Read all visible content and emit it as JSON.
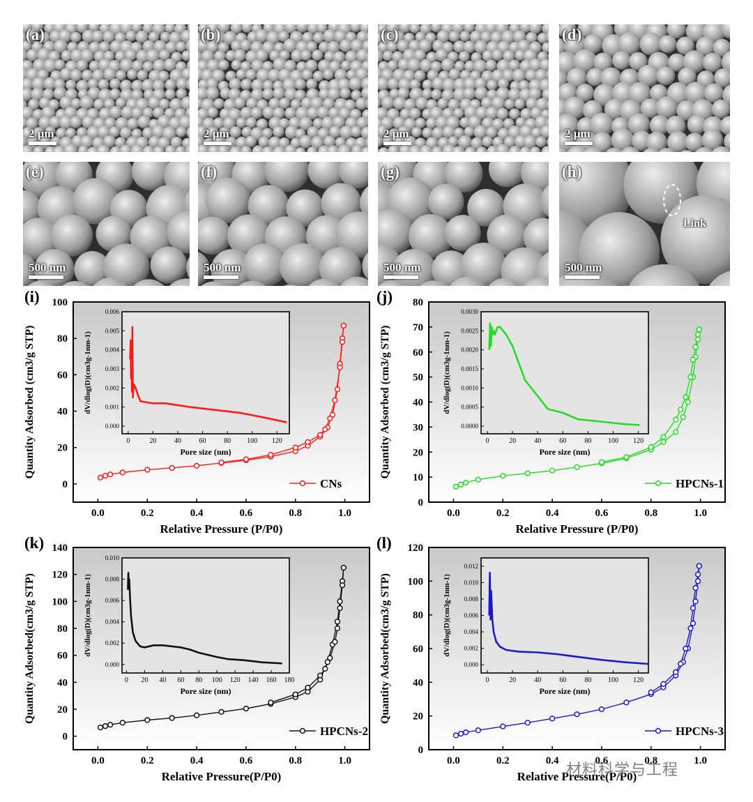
{
  "sem_panels": [
    {
      "label": "(a)",
      "scale": "2 μm"
    },
    {
      "label": "(b)",
      "scale": "2 μm"
    },
    {
      "label": "(c)",
      "scale": "2 μm"
    },
    {
      "label": "(d)",
      "scale": "2 μm"
    },
    {
      "label": "(e)",
      "scale": "500 nm"
    },
    {
      "label": "(f)",
      "scale": "500 nm"
    },
    {
      "label": "(g)",
      "scale": "500 nm"
    },
    {
      "label": "(h)",
      "scale": "500 nm",
      "annotation": "Link"
    }
  ],
  "watermark": "材料科学与工程",
  "colors": {
    "CNs": "#ff1a1a",
    "HPCNs-1": "#22dd22",
    "HPCNs-2": "#111111",
    "HPCNs-3": "#1a1acc"
  },
  "chart_data": [
    {
      "panel": "(i)",
      "type": "line",
      "series_name": "CNs",
      "xlabel": "Relative Pressure (P/P0)",
      "ylabel": "Quantity Adsorbed (cm3/g STP)",
      "xlim": [
        -0.1,
        1.1
      ],
      "ylim": [
        -10,
        100
      ],
      "xticks": [
        0.0,
        0.2,
        0.4,
        0.6,
        0.8,
        1.0
      ],
      "yticks": [
        0,
        20,
        40,
        60,
        80,
        100
      ],
      "legend_position": "bottom-right",
      "adsorption": [
        [
          0.01,
          3.5
        ],
        [
          0.03,
          4.5
        ],
        [
          0.05,
          5.2
        ],
        [
          0.1,
          6.3
        ],
        [
          0.2,
          7.8
        ],
        [
          0.3,
          8.8
        ],
        [
          0.4,
          10
        ],
        [
          0.5,
          11.5
        ],
        [
          0.6,
          13
        ],
        [
          0.7,
          15
        ],
        [
          0.8,
          18
        ],
        [
          0.85,
          21
        ],
        [
          0.9,
          26
        ],
        [
          0.93,
          31
        ],
        [
          0.95,
          38
        ],
        [
          0.97,
          52
        ],
        [
          0.98,
          66
        ],
        [
          0.99,
          80
        ],
        [
          0.995,
          87
        ]
      ],
      "desorption": [
        [
          0.995,
          87
        ],
        [
          0.99,
          78
        ],
        [
          0.98,
          64
        ],
        [
          0.96,
          46
        ],
        [
          0.94,
          36
        ],
        [
          0.92,
          30
        ],
        [
          0.9,
          27
        ],
        [
          0.85,
          23
        ],
        [
          0.8,
          20
        ],
        [
          0.7,
          16
        ],
        [
          0.6,
          13.5
        ],
        [
          0.5,
          11.8
        ]
      ],
      "inset": {
        "xlabel": "Pore size (nm)",
        "ylabel": "dV/dlog(D)(cm3g-1nm-1)",
        "xlim": [
          -5,
          130
        ],
        "ylim": [
          -0.0004,
          0.006
        ],
        "xticks": [
          0,
          20,
          40,
          60,
          80,
          100,
          120
        ],
        "yticks": [
          0.0,
          0.001,
          0.002,
          0.003,
          0.004,
          0.005,
          0.006
        ],
        "ytick_labels": [
          "0.000",
          "0.001",
          "0.002",
          "0.003",
          "0.004",
          "0.005",
          "0.006"
        ],
        "points": [
          [
            1.5,
            0.0035
          ],
          [
            2,
            0.0045
          ],
          [
            2.3,
            0.0025
          ],
          [
            2.6,
            0.0045
          ],
          [
            3,
            0.0018
          ],
          [
            3.4,
            0.0052
          ],
          [
            3.8,
            0.0015
          ],
          [
            4.5,
            0.0022
          ],
          [
            6,
            0.002
          ],
          [
            8,
            0.0016
          ],
          [
            10,
            0.0013
          ],
          [
            20,
            0.0012
          ],
          [
            30,
            0.0012
          ],
          [
            50,
            0.001
          ],
          [
            70,
            0.00085
          ],
          [
            90,
            0.0007
          ],
          [
            110,
            0.00045
          ],
          [
            128,
            0.0002
          ]
        ]
      }
    },
    {
      "panel": "(j)",
      "type": "line",
      "series_name": "HPCNs-1",
      "xlabel": "Relative Pressure (P/P0)",
      "ylabel": "Quantity Adsorbed (cm3/g STP)",
      "xlim": [
        -0.1,
        1.1
      ],
      "ylim": [
        0,
        80
      ],
      "xticks": [
        0.0,
        0.2,
        0.4,
        0.6,
        0.8,
        1.0
      ],
      "yticks": [
        0,
        10,
        20,
        30,
        40,
        50,
        60,
        70,
        80
      ],
      "legend_position": "bottom-right",
      "adsorption": [
        [
          0.01,
          6.2
        ],
        [
          0.03,
          7
        ],
        [
          0.05,
          7.8
        ],
        [
          0.1,
          9
        ],
        [
          0.2,
          10.5
        ],
        [
          0.3,
          11.5
        ],
        [
          0.4,
          12.6
        ],
        [
          0.5,
          14
        ],
        [
          0.6,
          15.5
        ],
        [
          0.7,
          17.5
        ],
        [
          0.8,
          21
        ],
        [
          0.85,
          24
        ],
        [
          0.9,
          28
        ],
        [
          0.93,
          34
        ],
        [
          0.95,
          40
        ],
        [
          0.97,
          50
        ],
        [
          0.98,
          58
        ],
        [
          0.99,
          65
        ],
        [
          0.995,
          69
        ]
      ],
      "desorption": [
        [
          0.995,
          69
        ],
        [
          0.99,
          67
        ],
        [
          0.98,
          62
        ],
        [
          0.97,
          57
        ],
        [
          0.96,
          50
        ],
        [
          0.94,
          42
        ],
        [
          0.92,
          37
        ],
        [
          0.9,
          33
        ],
        [
          0.85,
          26
        ],
        [
          0.8,
          22
        ],
        [
          0.7,
          18
        ],
        [
          0.6,
          16
        ]
      ],
      "inset": {
        "xlabel": "Pore size (nm)",
        "ylabel": "dV/dlog(D)(cm3g-1nm-1)",
        "xlim": [
          -5,
          128
        ],
        "ylim": [
          -0.0002,
          0.003
        ],
        "xticks": [
          0,
          20,
          40,
          60,
          80,
          100,
          120
        ],
        "yticks": [
          0.0,
          0.0005,
          0.001,
          0.0015,
          0.002,
          0.0025,
          0.003
        ],
        "ytick_labels": [
          "0.0000",
          "0.0005",
          "0.0010",
          "0.0015",
          "0.0020",
          "0.0025",
          "0.0030"
        ],
        "points": [
          [
            1.5,
            0.002
          ],
          [
            2.2,
            0.0027
          ],
          [
            2.8,
            0.0021
          ],
          [
            3.5,
            0.0026
          ],
          [
            4,
            0.0024
          ],
          [
            5,
            0.0025
          ],
          [
            6,
            0.0024
          ],
          [
            8,
            0.0026
          ],
          [
            10,
            0.0026
          ],
          [
            15,
            0.0024
          ],
          [
            20,
            0.0021
          ],
          [
            30,
            0.0012
          ],
          [
            35,
            0.001
          ],
          [
            48,
            0.00045
          ],
          [
            60,
            0.00035
          ],
          [
            72,
            0.00018
          ],
          [
            90,
            0.00012
          ],
          [
            110,
            5e-05
          ],
          [
            121,
            3e-05
          ]
        ]
      }
    },
    {
      "panel": "(k)",
      "type": "line",
      "series_name": "HPCNs-2",
      "xlabel": "Relative Pressure(P/P0)",
      "ylabel": "Quantity Adsorbed(cm3/g STP)",
      "xlim": [
        -0.1,
        1.1
      ],
      "ylim": [
        -10,
        140
      ],
      "xticks": [
        0.0,
        0.2,
        0.4,
        0.6,
        0.8,
        1.0
      ],
      "yticks": [
        0,
        20,
        40,
        60,
        80,
        100,
        120,
        140
      ],
      "legend_position": "bottom-right",
      "adsorption": [
        [
          0.01,
          6.5
        ],
        [
          0.03,
          7.5
        ],
        [
          0.05,
          8.5
        ],
        [
          0.1,
          10
        ],
        [
          0.2,
          12
        ],
        [
          0.3,
          13.5
        ],
        [
          0.4,
          15.5
        ],
        [
          0.5,
          18
        ],
        [
          0.6,
          20.5
        ],
        [
          0.7,
          24
        ],
        [
          0.8,
          29
        ],
        [
          0.85,
          33
        ],
        [
          0.9,
          42
        ],
        [
          0.93,
          55
        ],
        [
          0.95,
          68
        ],
        [
          0.97,
          85
        ],
        [
          0.98,
          100
        ],
        [
          0.99,
          115
        ],
        [
          0.995,
          125
        ]
      ],
      "desorption": [
        [
          0.995,
          125
        ],
        [
          0.99,
          112
        ],
        [
          0.98,
          95
        ],
        [
          0.97,
          80
        ],
        [
          0.96,
          70
        ],
        [
          0.94,
          58
        ],
        [
          0.92,
          50
        ],
        [
          0.9,
          45
        ],
        [
          0.85,
          36
        ],
        [
          0.8,
          31
        ],
        [
          0.7,
          25
        ]
      ],
      "inset": {
        "xlabel": "Pore size (nm)",
        "ylabel": "dV/dlog(D)(cm3g-1nm-1)",
        "xlim": [
          -5,
          180
        ],
        "ylim": [
          -0.0008,
          0.01
        ],
        "xticks": [
          0,
          20,
          40,
          60,
          80,
          100,
          120,
          140,
          160,
          180
        ],
        "yticks": [
          0.0,
          0.002,
          0.004,
          0.006,
          0.008,
          0.01
        ],
        "ytick_labels": [
          "0.000",
          "0.002",
          "0.004",
          "0.006",
          "0.008",
          "0.010"
        ],
        "points": [
          [
            1.5,
            0.007
          ],
          [
            2,
            0.0086
          ],
          [
            2.5,
            0.0075
          ],
          [
            3,
            0.008
          ],
          [
            4,
            0.006
          ],
          [
            5,
            0.0045
          ],
          [
            7,
            0.003
          ],
          [
            10,
            0.0022
          ],
          [
            15,
            0.0017
          ],
          [
            20,
            0.0016
          ],
          [
            30,
            0.0018
          ],
          [
            40,
            0.0018
          ],
          [
            50,
            0.0017
          ],
          [
            60,
            0.0016
          ],
          [
            70,
            0.0014
          ],
          [
            80,
            0.0011
          ],
          [
            90,
            0.0009
          ],
          [
            100,
            0.0007
          ],
          [
            112,
            0.0005
          ],
          [
            130,
            0.0004
          ],
          [
            150,
            0.0002
          ],
          [
            172,
            0.0001
          ]
        ]
      }
    },
    {
      "panel": "(l)",
      "type": "line",
      "series_name": "HPCNs-3",
      "xlabel": "Relative Pressure(P/P0)",
      "ylabel": "Quantity Adsorbed(cm3/g STP)",
      "xlim": [
        -0.1,
        1.1
      ],
      "ylim": [
        0,
        120
      ],
      "xticks": [
        0.0,
        0.2,
        0.4,
        0.6,
        0.8,
        1.0
      ],
      "yticks": [
        0,
        20,
        40,
        60,
        80,
        100,
        120
      ],
      "legend_position": "bottom-right",
      "adsorption": [
        [
          0.01,
          8.5
        ],
        [
          0.03,
          9.5
        ],
        [
          0.05,
          10.3
        ],
        [
          0.1,
          11.5
        ],
        [
          0.2,
          13.8
        ],
        [
          0.3,
          16
        ],
        [
          0.4,
          18.5
        ],
        [
          0.5,
          21
        ],
        [
          0.6,
          24
        ],
        [
          0.7,
          28
        ],
        [
          0.8,
          33
        ],
        [
          0.85,
          37
        ],
        [
          0.9,
          44
        ],
        [
          0.93,
          52
        ],
        [
          0.95,
          60
        ],
        [
          0.97,
          75
        ],
        [
          0.98,
          88
        ],
        [
          0.99,
          100
        ],
        [
          0.995,
          109
        ]
      ],
      "desorption": [
        [
          0.995,
          109
        ],
        [
          0.99,
          104
        ],
        [
          0.98,
          96
        ],
        [
          0.97,
          84
        ],
        [
          0.96,
          72
        ],
        [
          0.94,
          60
        ],
        [
          0.92,
          51
        ],
        [
          0.9,
          46
        ],
        [
          0.85,
          39
        ],
        [
          0.8,
          34
        ]
      ],
      "inset": {
        "xlabel": "Pore size (nm)",
        "ylabel": "dV/dlog(D)(cm3g-1nm-1)",
        "xlim": [
          -5,
          128
        ],
        "ylim": [
          -0.001,
          0.013
        ],
        "xticks": [
          0,
          20,
          40,
          60,
          80,
          100,
          120
        ],
        "yticks": [
          0.0,
          0.002,
          0.004,
          0.006,
          0.008,
          0.01,
          0.012
        ],
        "ytick_labels": [
          "0.000",
          "0.002",
          "0.004",
          "0.006",
          "0.008",
          "0.010",
          "0.012"
        ],
        "points": [
          [
            1.5,
            0.006
          ],
          [
            2,
            0.0112
          ],
          [
            2.5,
            0.0055
          ],
          [
            3,
            0.009
          ],
          [
            4,
            0.0055
          ],
          [
            5,
            0.004
          ],
          [
            7,
            0.0028
          ],
          [
            10,
            0.0022
          ],
          [
            15,
            0.0018
          ],
          [
            25,
            0.0016
          ],
          [
            40,
            0.0015
          ],
          [
            55,
            0.0013
          ],
          [
            70,
            0.001
          ],
          [
            90,
            0.0006
          ],
          [
            110,
            0.0003
          ],
          [
            128,
            0.0001
          ]
        ]
      }
    }
  ]
}
